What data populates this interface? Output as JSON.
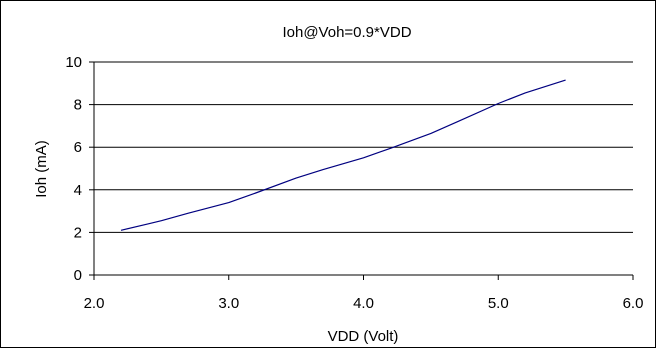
{
  "chart_data": {
    "type": "line",
    "title": "Ioh@Voh=0.9*VDD",
    "xlabel": "VDD (Volt)",
    "ylabel": "Ioh (mA)",
    "xlim": [
      2.0,
      6.0
    ],
    "ylim": [
      0,
      10
    ],
    "x_ticks": [
      "2.0",
      "3.0",
      "4.0",
      "5.0",
      "6.0"
    ],
    "y_ticks": [
      "0",
      "2",
      "4",
      "6",
      "8",
      "10"
    ],
    "grid": "horizontal",
    "legend": "none",
    "series": [
      {
        "color": "#000080",
        "x": [
          2.2,
          2.4,
          2.5,
          2.7,
          3.0,
          3.2,
          3.5,
          3.7,
          4.0,
          4.2,
          4.5,
          4.7,
          5.0,
          5.2,
          5.5
        ],
        "y": [
          2.1,
          2.4,
          2.55,
          2.9,
          3.4,
          3.85,
          4.55,
          4.95,
          5.5,
          5.95,
          6.65,
          7.2,
          8.05,
          8.55,
          9.15
        ]
      }
    ]
  }
}
